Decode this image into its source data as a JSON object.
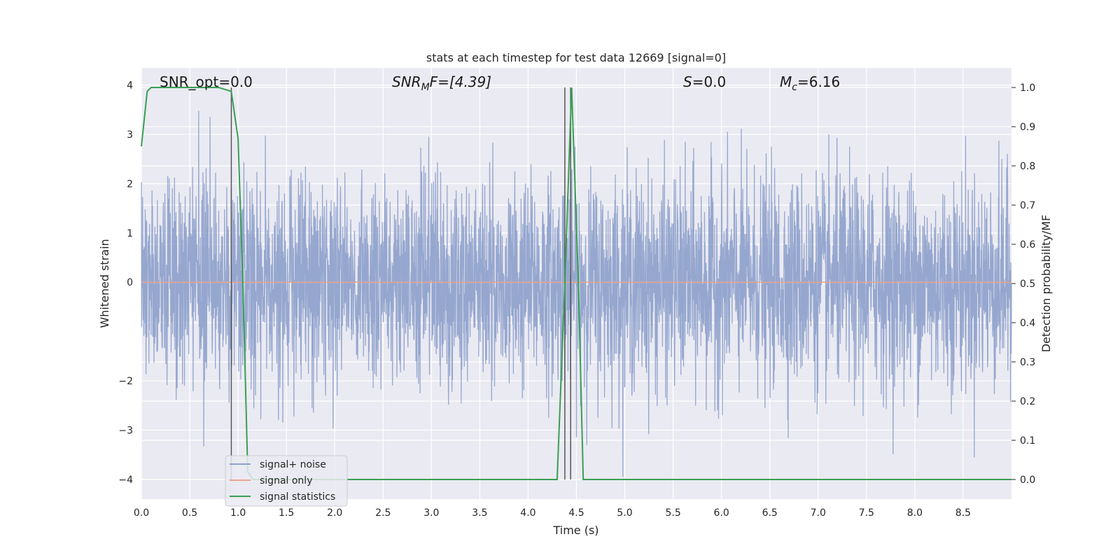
{
  "chart_data": {
    "type": "line",
    "title": "stats at each timestep for test data 12669 [signal=0]",
    "xlabel": "Time (s)",
    "ylabel": "Whitened strain",
    "ylabel_right": "Detection probability/MF",
    "xlim": [
      0.0,
      9.0
    ],
    "ylim": [
      -4.4,
      4.35
    ],
    "ylim_right": [
      -0.05,
      1.05
    ],
    "xticks": [
      "0.0",
      "0.5",
      "1.0",
      "1.5",
      "2.0",
      "2.5",
      "3.0",
      "3.5",
      "4.0",
      "4.5",
      "5.0",
      "5.5",
      "6.0",
      "6.5",
      "7.0",
      "7.5",
      "8.0",
      "8.5"
    ],
    "yticks": [
      "4",
      "3",
      "2",
      "1",
      "0",
      "−2",
      "−3",
      "−4"
    ],
    "yticks_right": [
      "1.0",
      "0.9",
      "0.8",
      "0.7",
      "0.6",
      "0.5",
      "0.4",
      "0.3",
      "0.2",
      "0.1",
      "0.0"
    ],
    "annotations": {
      "snr_opt": "SNR_opt=0.0",
      "snr_mf_main": "SNR",
      "snr_mf_sub": "M",
      "snr_mf_rest": "F=[4.39]",
      "s_main": "S",
      "s_rest": "=0.0",
      "mc_main": "M",
      "mc_sub": "c",
      "mc_rest": "=6.16"
    },
    "series": [
      {
        "name": "signal+ noise",
        "color": "#8da0cb",
        "description_sample": "whitened noise, roughly uniform in [-2.5, 2.5] with spikes to about 3.7 / -4.0",
        "sample_rate": 400
      },
      {
        "name": "signal only",
        "color": "#e8a38a",
        "x": [
          0.0,
          9.0
        ],
        "y": [
          0.0,
          0.0
        ]
      },
      {
        "name": "signal statistics",
        "color": "#3a9e52",
        "axis": "right",
        "x": [
          0.0,
          0.06,
          0.1,
          0.2,
          0.5,
          0.8,
          0.93,
          1.0,
          1.05,
          1.1,
          1.15,
          4.3,
          4.38,
          4.45,
          4.52,
          4.57,
          9.0
        ],
        "y": [
          0.85,
          0.99,
          1.0,
          1.0,
          1.0,
          1.0,
          0.99,
          0.87,
          0.5,
          0.02,
          0.0,
          0.0,
          0.5,
          1.0,
          0.5,
          0.0,
          0.0
        ]
      }
    ],
    "vlines": [
      0.93,
      4.38,
      4.44
    ],
    "legend": "lower-left"
  },
  "colors": {
    "plot_bg": "#eaeaf2",
    "grid": "#ffffff",
    "vline": "#555555"
  }
}
